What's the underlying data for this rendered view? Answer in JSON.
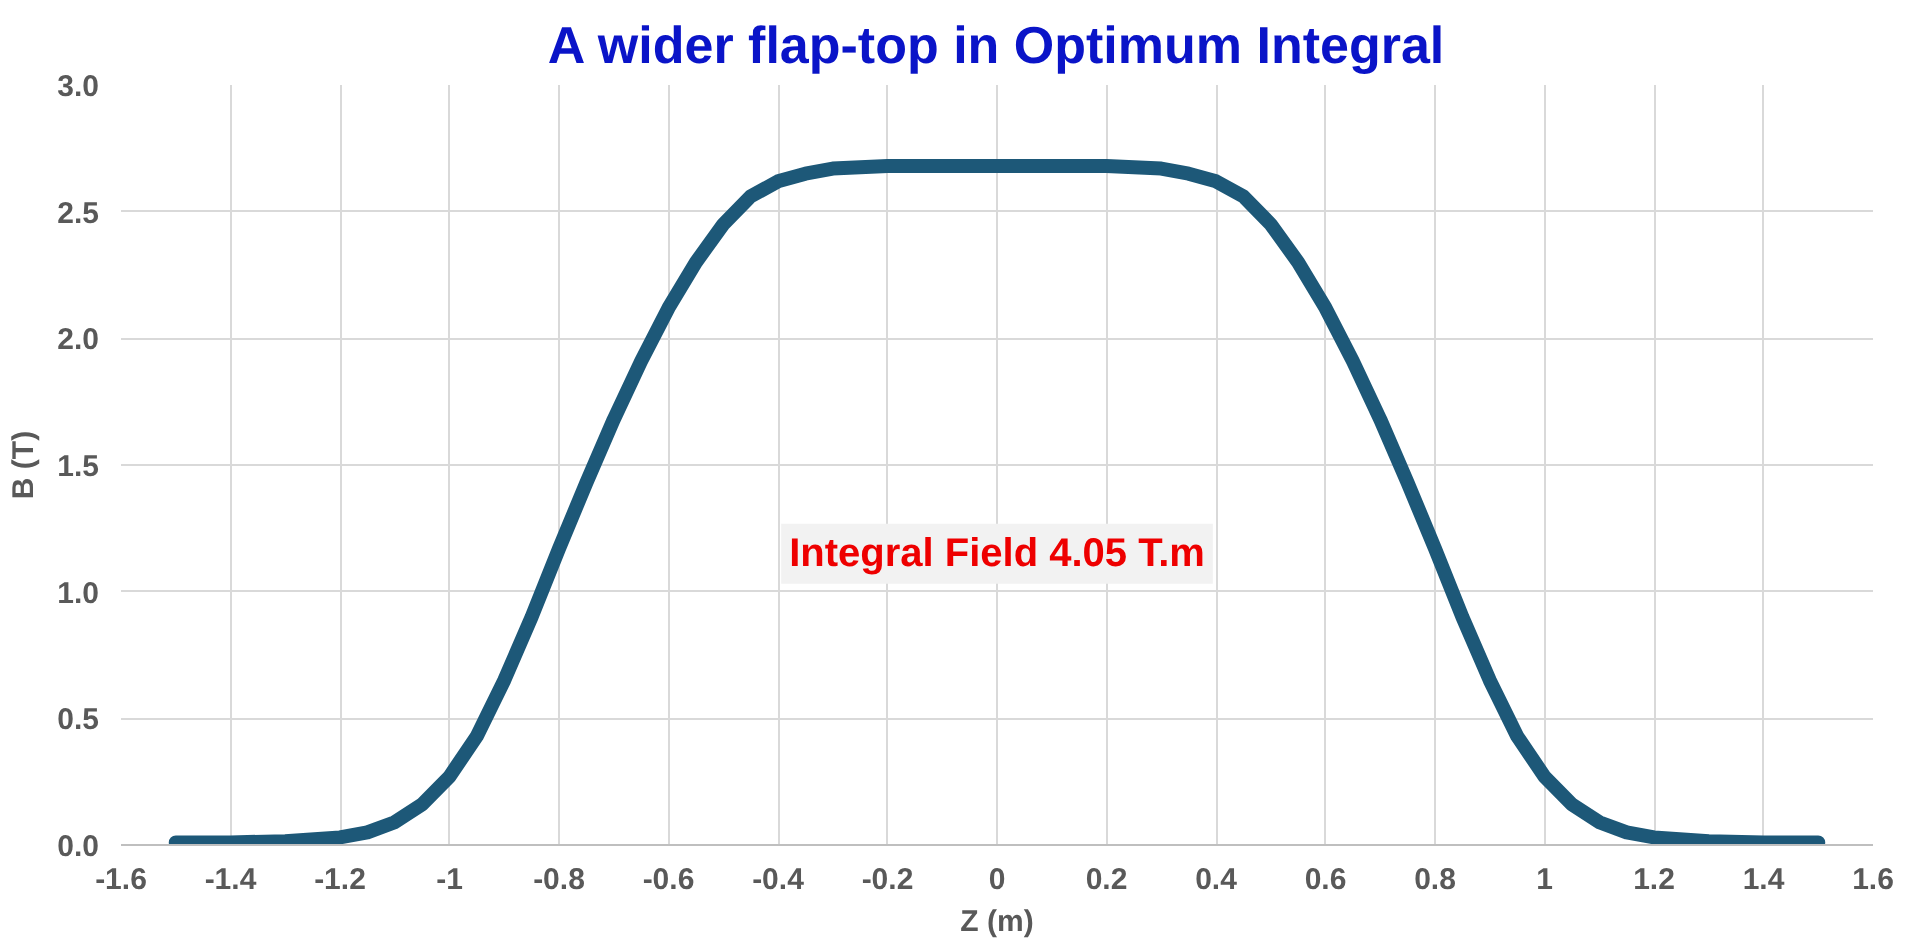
{
  "chart_data": {
    "type": "line",
    "title": "A wider flap-top in Optimum Integral",
    "xlabel": "Z (m)",
    "ylabel": "B (T)",
    "annotations": [
      "Integral Field 4.05 T.m"
    ],
    "x": [
      -1.5,
      -1.4,
      -1.3,
      -1.2,
      -1.15,
      -1.1,
      -1.05,
      -1.0,
      -0.95,
      -0.9,
      -0.85,
      -0.8,
      -0.75,
      -0.7,
      -0.65,
      -0.6,
      -0.55,
      -0.5,
      -0.45,
      -0.4,
      -0.35,
      -0.3,
      -0.2,
      -0.1,
      0,
      0.1,
      0.2,
      0.3,
      0.35,
      0.4,
      0.45,
      0.5,
      0.55,
      0.6,
      0.65,
      0.7,
      0.75,
      0.8,
      0.85,
      0.9,
      0.95,
      1.0,
      1.05,
      1.1,
      1.15,
      1.2,
      1.3,
      1.4,
      1.5
    ],
    "series": [
      {
        "color": "#1d5878",
        "values": [
          0.01,
          0.01,
          0.015,
          0.03,
          0.05,
          0.09,
          0.16,
          0.27,
          0.43,
          0.65,
          0.9,
          1.17,
          1.43,
          1.68,
          1.91,
          2.12,
          2.3,
          2.45,
          2.56,
          2.62,
          2.65,
          2.67,
          2.68,
          2.68,
          2.68,
          2.68,
          2.68,
          2.67,
          2.65,
          2.62,
          2.56,
          2.45,
          2.3,
          2.12,
          1.91,
          1.68,
          1.43,
          1.17,
          0.9,
          0.65,
          0.43,
          0.27,
          0.16,
          0.09,
          0.05,
          0.03,
          0.015,
          0.01,
          0.01
        ]
      }
    ],
    "xlim": [
      -1.6,
      1.6
    ],
    "xticks": [
      -1.6,
      -1.4,
      -1.2,
      -1,
      -0.8,
      -0.6,
      -0.4,
      -0.2,
      0,
      0.2,
      0.4,
      0.6,
      0.8,
      1,
      1.2,
      1.4,
      1.6
    ],
    "ylim": [
      0,
      3
    ],
    "yticks": [
      {
        "value": 0,
        "label": "0.0"
      },
      {
        "value": 0.5,
        "label": "0.5"
      },
      {
        "value": 1,
        "label": "1.0"
      },
      {
        "value": 1.5,
        "label": "1.5"
      },
      {
        "value": 2,
        "label": "2.0"
      },
      {
        "value": 2.5,
        "label": "2.5"
      },
      {
        "value": 3,
        "label": "3.0"
      }
    ],
    "grid": true,
    "marker": "none",
    "line_style": "solid"
  }
}
